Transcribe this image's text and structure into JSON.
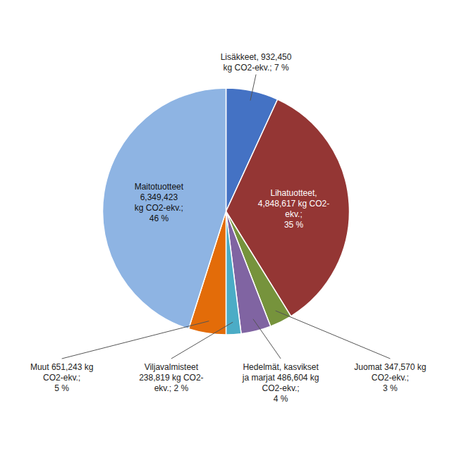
{
  "chart_data": {
    "type": "pie",
    "categories": [
      "Lisäkkeet, 932,450\nkg CO2-ekv.; 7 %",
      "Lihatuotteet,\n4,848,617 kg CO2-\nekv.;\n35 %",
      "Juomat 347,570 kg\nCO2-ekv.;\n3 %",
      "Hedelmät, kasvikset\nja marjat 486,604 kg\nCO2-ekv.;\n4 %",
      "Viljavalmisteet\n238,819 kg CO2-\nekv.; 2 %",
      "Muut 651,243 kg\nCO2-ekv.;\n5 %",
      "Maitotuotteet\n6,349,423\nkg CO2-ekv.;\n46 %"
    ],
    "values": [
      7,
      35,
      3,
      4,
      2,
      5,
      46
    ],
    "colors": [
      "#4472C4",
      "#943634",
      "#76933C",
      "#8064A2",
      "#4BACC6",
      "#E36C09",
      "#8EB4E3"
    ]
  }
}
